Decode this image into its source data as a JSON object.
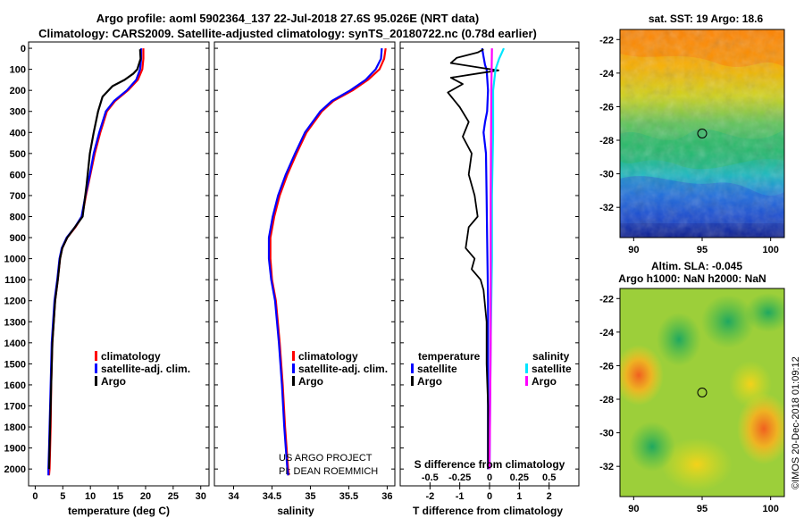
{
  "title": {
    "line1": "Argo profile: aoml 5902364_137 22-Jul-2018 27.6S 95.026E (NRT data)",
    "line2": "Climatology: CARS2009. Satellite-adjusted climatology: synTS_20180722.nc (0.78d earlier)"
  },
  "colors": {
    "climatology": "#ff0000",
    "satellite": "#0000ff",
    "argo": "#000000",
    "satellite_salinity": "#00e5ff",
    "argo_salinity": "#ff00ff"
  },
  "depth_axis": {
    "ticks": [
      0,
      100,
      200,
      300,
      400,
      500,
      600,
      700,
      800,
      900,
      1000,
      1100,
      1200,
      1300,
      1400,
      1500,
      1600,
      1700,
      1800,
      1900,
      2000
    ]
  },
  "chart_data": [
    {
      "type": "line",
      "title": "",
      "xlabel": "temperature (deg C)",
      "ylabel": "",
      "xlim": [
        -1.2,
        31.5
      ],
      "ylim": [
        2080,
        -30
      ],
      "xticks": [
        0,
        5,
        10,
        15,
        20,
        25,
        30
      ],
      "legend": [
        "climatology",
        "satellite-adj. clim.",
        "Argo"
      ],
      "legend_placement": "bottom-right",
      "series": [
        {
          "name": "climatology",
          "color": "#ff0000",
          "x": [
            19.6,
            19.6,
            19.4,
            18.6,
            16.8,
            14.5,
            13.0,
            11.8,
            10.8,
            10.0,
            9.2,
            8.5,
            7.3,
            5.8,
            4.9,
            4.5,
            4.1,
            3.6,
            3.1,
            2.9,
            2.8,
            2.7,
            2.6,
            2.5
          ],
          "y": [
            0,
            50,
            100,
            150,
            200,
            250,
            300,
            400,
            500,
            600,
            700,
            800,
            850,
            900,
            950,
            1000,
            1100,
            1200,
            1400,
            1600,
            1800,
            1900,
            2000,
            2030
          ]
        },
        {
          "name": "satellite-adj. clim.",
          "color": "#0000ff",
          "x": [
            19.2,
            19.2,
            19.0,
            18.3,
            16.6,
            14.3,
            12.8,
            11.6,
            10.6,
            9.9,
            9.1,
            8.4,
            7.2,
            5.7,
            4.8,
            4.4,
            4.0,
            3.5,
            3.0,
            2.8,
            2.6,
            2.5,
            2.4,
            2.4
          ],
          "y": [
            0,
            50,
            100,
            150,
            200,
            250,
            300,
            400,
            500,
            600,
            700,
            800,
            850,
            900,
            950,
            1000,
            1100,
            1200,
            1400,
            1600,
            1800,
            1900,
            2000,
            2030
          ]
        },
        {
          "name": "Argo",
          "color": "#000000",
          "x": [
            19.0,
            19.1,
            18.5,
            17.8,
            16.2,
            14.0,
            12.2,
            11.4,
            10.6,
            9.9,
            9.3,
            8.6,
            7.2,
            5.8,
            4.9,
            4.5,
            4.1,
            3.6,
            3.1,
            2.9,
            2.7,
            2.6,
            2.5
          ],
          "y": [
            5,
            50,
            100,
            120,
            150,
            180,
            230,
            300,
            400,
            500,
            650,
            800,
            850,
            900,
            950,
            1000,
            1100,
            1200,
            1400,
            1600,
            1800,
            1900,
            2000
          ]
        }
      ]
    },
    {
      "type": "line",
      "title": "",
      "xlabel": "salinity",
      "ylabel": "",
      "xlim": [
        33.75,
        36.1
      ],
      "ylim": [
        2080,
        -30
      ],
      "xticks": [
        34,
        34.5,
        35,
        35.5,
        36
      ],
      "xticklabels": [
        "34",
        "34.5",
        "35",
        "35.5",
        "36"
      ],
      "legend": [
        "climatology",
        "satellite-adj. clim.",
        "Argo"
      ],
      "legend_placement": "bottom-right",
      "annotations": [
        "US ARGO PROJECT",
        "PI: DEAN ROEMMICH"
      ],
      "series": [
        {
          "name": "climatology",
          "color": "#ff0000",
          "x": [
            35.98,
            35.96,
            35.9,
            35.75,
            35.55,
            35.3,
            35.15,
            34.95,
            34.82,
            34.7,
            34.6,
            34.53,
            34.48,
            34.48,
            34.5,
            34.55,
            34.6,
            34.64,
            34.67,
            34.69,
            34.71,
            34.72
          ],
          "y": [
            0,
            50,
            100,
            150,
            200,
            250,
            300,
            400,
            500,
            600,
            700,
            800,
            900,
            1000,
            1100,
            1200,
            1400,
            1600,
            1800,
            1900,
            2000,
            2030
          ]
        },
        {
          "name": "satellite-adj. clim.",
          "color": "#0000ff",
          "x": [
            35.93,
            35.92,
            35.85,
            35.72,
            35.52,
            35.28,
            35.13,
            34.93,
            34.8,
            34.68,
            34.58,
            34.51,
            34.46,
            34.46,
            34.49,
            34.54,
            34.59,
            34.63,
            34.66,
            34.68,
            34.7,
            34.71
          ],
          "y": [
            0,
            50,
            100,
            150,
            200,
            250,
            300,
            400,
            500,
            600,
            700,
            800,
            900,
            1000,
            1100,
            1200,
            1400,
            1600,
            1800,
            1900,
            2000,
            2030
          ]
        }
      ]
    },
    {
      "type": "line",
      "title": "",
      "xlabel": "T difference from climatology",
      "xlabel_top": "S difference from climatology",
      "ylabel": "",
      "xlim": [
        -3.0,
        3.0
      ],
      "ylim": [
        2080,
        -30
      ],
      "xticks": [
        -2,
        -1,
        0,
        1,
        2
      ],
      "xticks_top": [
        -0.5,
        -0.25,
        0,
        0.25,
        0.5
      ],
      "xticklabels_top": [
        "-0.5",
        "-0.25",
        "0",
        "0.25",
        "0.5"
      ],
      "legend_headers": [
        "temperature",
        "salinity"
      ],
      "legend": [
        "satellite",
        "Argo",
        "satellite",
        "Argo"
      ],
      "legend_placement": "bottom",
      "series": [
        {
          "name": "temperature satellite",
          "color": "#0000ff",
          "x": [
            -0.25,
            -0.2,
            -0.15,
            -0.1,
            -0.05,
            -0.08,
            -0.15,
            -0.2,
            -0.12,
            -0.1,
            -0.08,
            -0.05,
            -0.05
          ],
          "y": [
            0,
            40,
            80,
            100,
            200,
            300,
            350,
            400,
            500,
            700,
            900,
            1200,
            2000
          ]
        },
        {
          "name": "temperature Argo",
          "color": "#000000",
          "x": [
            -0.2,
            -0.4,
            -1.1,
            -1.3,
            -0.2,
            0.3,
            -0.4,
            -1.3,
            -0.9,
            -1.4,
            -1.0,
            -0.7,
            -0.9,
            -0.6,
            -0.7,
            -0.5,
            -0.4,
            -0.7,
            -0.8,
            -0.5,
            -0.6,
            -0.3,
            -0.2,
            -0.1,
            -0.1,
            -0.05,
            -0.05,
            -0.05
          ],
          "y": [
            5,
            20,
            45,
            70,
            95,
            105,
            120,
            140,
            170,
            210,
            280,
            350,
            420,
            500,
            600,
            700,
            800,
            850,
            950,
            1000,
            1050,
            1100,
            1150,
            1300,
            1500,
            1700,
            1900,
            2000
          ]
        },
        {
          "name": "salinity satellite",
          "color": "#00e5ff",
          "x": [
            0.12,
            0.08,
            0.05,
            0.03,
            0.03,
            0.02,
            0.02,
            0.01,
            0.0
          ],
          "y": [
            0,
            50,
            100,
            200,
            400,
            700,
            1000,
            1400,
            2000
          ]
        },
        {
          "name": "salinity Argo",
          "color": "#ff00ff",
          "x": [
            0.02,
            0.015,
            0.01,
            0.01,
            0.0
          ],
          "y": [
            0,
            200,
            700,
            1400,
            2000
          ]
        }
      ]
    },
    {
      "type": "heatmap",
      "title": "sat. SST: 19 Argo: 18.6",
      "xlim": [
        89,
        101
      ],
      "ylim": [
        -33.8,
        -21.4
      ],
      "xticks": [
        90,
        95,
        100
      ],
      "yticks": [
        -22,
        -24,
        -26,
        -28,
        -30,
        -32
      ],
      "marker": {
        "x": 95,
        "y": -27.6
      }
    },
    {
      "type": "heatmap",
      "title": "Altim. SLA: -0.045",
      "subtitle": "Argo h1000: NaN h2000: NaN",
      "xlim": [
        89,
        101
      ],
      "ylim": [
        -33.8,
        -21.4
      ],
      "xticks": [
        90,
        95,
        100
      ],
      "yticks": [
        -22,
        -24,
        -26,
        -28,
        -30,
        -32
      ],
      "marker": {
        "x": 95,
        "y": -27.6
      }
    }
  ],
  "legend_labels": {
    "climatology": "climatology",
    "satellite_adj": "satellite-adj. clim.",
    "argo": "Argo",
    "temperature": "temperature",
    "salinity": "salinity",
    "satellite": "satellite"
  },
  "credits": {
    "project": "US ARGO PROJECT",
    "pi": "PI: DEAN ROEMMICH",
    "imos": "©IMOS 20-Dec-2018 01:09:12"
  }
}
